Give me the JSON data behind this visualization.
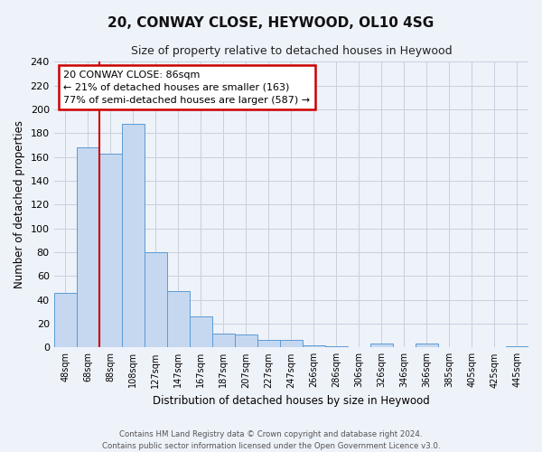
{
  "title": "20, CONWAY CLOSE, HEYWOOD, OL10 4SG",
  "subtitle": "Size of property relative to detached houses in Heywood",
  "xlabel": "Distribution of detached houses by size in Heywood",
  "ylabel": "Number of detached properties",
  "footer_line1": "Contains HM Land Registry data © Crown copyright and database right 2024.",
  "footer_line2": "Contains public sector information licensed under the Open Government Licence v3.0.",
  "bar_labels": [
    "48sqm",
    "68sqm",
    "88sqm",
    "108sqm",
    "127sqm",
    "147sqm",
    "167sqm",
    "187sqm",
    "207sqm",
    "227sqm",
    "247sqm",
    "266sqm",
    "286sqm",
    "306sqm",
    "326sqm",
    "346sqm",
    "366sqm",
    "385sqm",
    "405sqm",
    "425sqm",
    "445sqm"
  ],
  "bar_values": [
    46,
    168,
    163,
    188,
    80,
    47,
    26,
    12,
    11,
    6,
    6,
    2,
    1,
    0,
    3,
    0,
    3,
    0,
    0,
    0,
    1
  ],
  "bar_color": "#c5d8f0",
  "bar_edge_color": "#5b9bd5",
  "ylim": [
    0,
    240
  ],
  "yticks": [
    0,
    20,
    40,
    60,
    80,
    100,
    120,
    140,
    160,
    180,
    200,
    220,
    240
  ],
  "annotation_title": "20 CONWAY CLOSE: 86sqm",
  "annotation_line1": "← 21% of detached houses are smaller (163)",
  "annotation_line2": "77% of semi-detached houses are larger (587) →",
  "annotation_box_color": "#ffffff",
  "annotation_box_edge_color": "#cc0000",
  "red_line_color": "#cc0000",
  "background_color": "#eef2f9",
  "grid_color": "#c8d0de"
}
